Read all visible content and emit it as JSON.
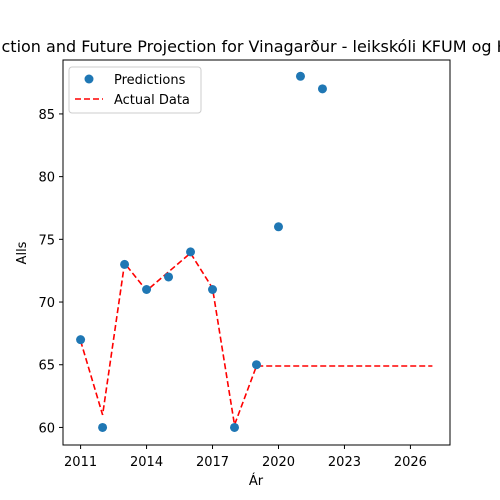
{
  "chart_data": {
    "type": "scatter",
    "title": "Prediction and Future Projection for Vinagarður - leikskóli KFUM og KFUK",
    "xlabel": "Ár",
    "ylabel": "Alls",
    "xlim": [
      2010.2,
      2027.8
    ],
    "ylim": [
      58.6,
      89.3
    ],
    "xticks": [
      2011,
      2014,
      2017,
      2020,
      2023,
      2026
    ],
    "yticks": [
      60,
      65,
      70,
      75,
      80,
      85
    ],
    "legend_position": "top-left",
    "grid": false,
    "series": [
      {
        "name": "Predictions",
        "kind": "scatter",
        "color": "#1f77b4",
        "x": [
          2011,
          2012,
          2013,
          2014,
          2015,
          2016,
          2017,
          2018,
          2019,
          2020,
          2021,
          2022
        ],
        "y": [
          67,
          60,
          73,
          71,
          72,
          74,
          71,
          60,
          65,
          76,
          88,
          87
        ]
      },
      {
        "name": "Actual Data",
        "kind": "line",
        "style": "dashed",
        "color": "#ff0000",
        "x": [
          2011,
          2012,
          2013,
          2014,
          2015,
          2016,
          2017,
          2018,
          2019,
          2020,
          2021,
          2022,
          2023,
          2024,
          2025,
          2026,
          2027
        ],
        "y": [
          66.9,
          61.0,
          73.1,
          70.9,
          72.4,
          73.9,
          71.1,
          60.2,
          64.9,
          64.9,
          64.9,
          64.9,
          64.9,
          64.9,
          64.9,
          64.9,
          64.9
        ]
      }
    ]
  }
}
